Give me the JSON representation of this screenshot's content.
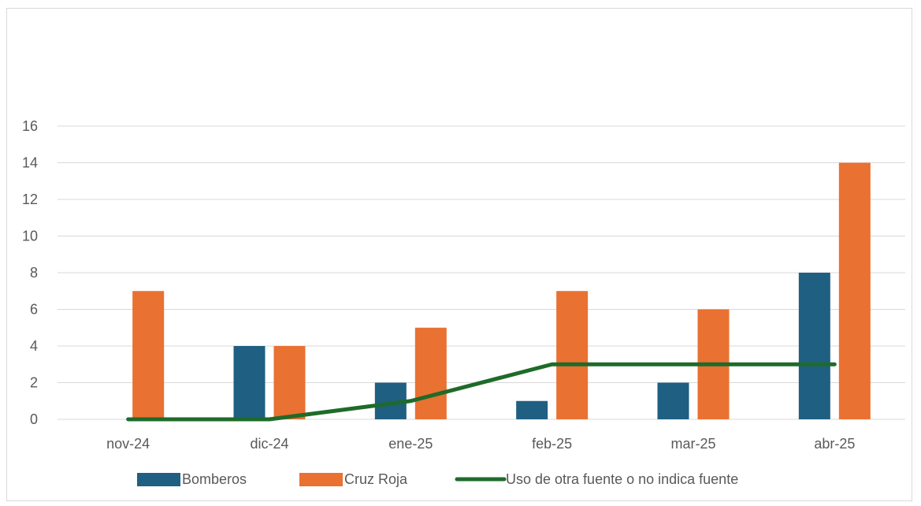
{
  "chart_data": {
    "type": "bar",
    "categories": [
      "nov-24",
      "dic-24",
      "ene-25",
      "feb-25",
      "mar-25",
      "abr-25"
    ],
    "series": [
      {
        "name": "Bomberos",
        "kind": "bar",
        "color": "#1f5f82",
        "values": [
          0,
          4,
          2,
          1,
          2,
          8
        ]
      },
      {
        "name": "Cruz Roja",
        "kind": "bar",
        "color": "#e97132",
        "values": [
          7,
          4,
          5,
          7,
          6,
          14
        ]
      },
      {
        "name": "Uso de otra fuente o no indica fuente",
        "kind": "line",
        "color": "#1e6b2a",
        "values": [
          0,
          0,
          1,
          3,
          3,
          3
        ]
      }
    ],
    "ylim": [
      0,
      16
    ],
    "yticks": [
      "0",
      "2",
      "4",
      "6",
      "8",
      "10",
      "12",
      "14",
      "16"
    ],
    "grid": true,
    "legend_position": "bottom"
  }
}
